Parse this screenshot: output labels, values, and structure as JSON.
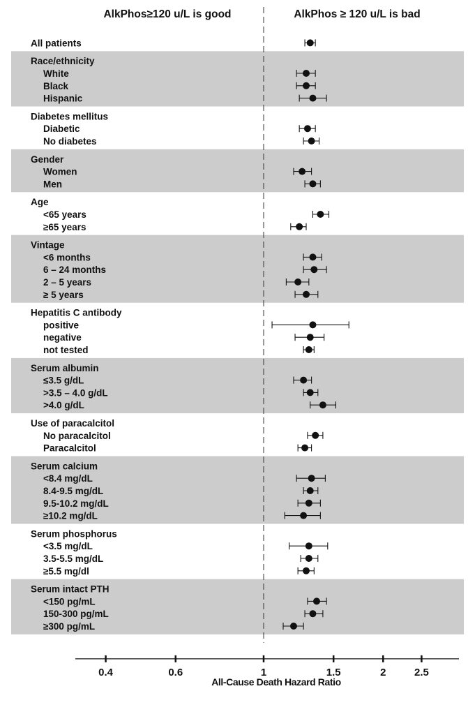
{
  "chart_data": {
    "type": "forest",
    "header_left": "AlkPhos≥120 u/L is good",
    "header_right": "AlkPhos ≥ 120 u/L is bad",
    "xlabel": "All-Cause Death Hazard Ratio",
    "x_scale": "log",
    "xlim": [
      0.4,
      2.9
    ],
    "reference_line": 1,
    "x_ticks": [
      {
        "value": 0.4,
        "label": "0.4"
      },
      {
        "value": 0.6,
        "label": "0.6"
      },
      {
        "value": 1,
        "label": "1"
      },
      {
        "value": 1.5,
        "label": "1.5"
      },
      {
        "value": 2,
        "label": "2"
      },
      {
        "value": 2.5,
        "label": "2.5"
      }
    ],
    "colors": {
      "band": "#cccccc",
      "marker": "#111111",
      "text": "#111111"
    },
    "groups": [
      {
        "label": "All patients",
        "shaded": false,
        "hr": 1.31,
        "lo": 1.27,
        "hi": 1.35,
        "rows": []
      },
      {
        "label": "Race/ethnicity",
        "shaded": true,
        "rows": [
          {
            "label": "White",
            "hr": 1.28,
            "lo": 1.21,
            "hi": 1.35
          },
          {
            "label": "Black",
            "hr": 1.28,
            "lo": 1.21,
            "hi": 1.35
          },
          {
            "label": "Hispanic",
            "hr": 1.33,
            "lo": 1.23,
            "hi": 1.44
          }
        ]
      },
      {
        "label": "Diabetes mellitus",
        "shaded": false,
        "rows": [
          {
            "label": "Diabetic",
            "hr": 1.29,
            "lo": 1.23,
            "hi": 1.35
          },
          {
            "label": "No diabetes",
            "hr": 1.32,
            "lo": 1.26,
            "hi": 1.38
          }
        ]
      },
      {
        "label": "Gender",
        "shaded": true,
        "rows": [
          {
            "label": "Women",
            "hr": 1.25,
            "lo": 1.19,
            "hi": 1.32
          },
          {
            "label": "Men",
            "hr": 1.33,
            "lo": 1.27,
            "hi": 1.39
          }
        ]
      },
      {
        "label": "Age",
        "shaded": false,
        "rows": [
          {
            "label": "<65 years",
            "hr": 1.39,
            "lo": 1.33,
            "hi": 1.46
          },
          {
            "label": "≥65 years",
            "hr": 1.23,
            "lo": 1.17,
            "hi": 1.28
          }
        ]
      },
      {
        "label": "Vintage",
        "shaded": true,
        "rows": [
          {
            "label": "<6 months",
            "hr": 1.33,
            "lo": 1.26,
            "hi": 1.4
          },
          {
            "label": "6 – 24 months",
            "hr": 1.34,
            "lo": 1.26,
            "hi": 1.44
          },
          {
            "label": "2 – 5 years",
            "hr": 1.22,
            "lo": 1.14,
            "hi": 1.3
          },
          {
            "label": "≥ 5 years",
            "hr": 1.28,
            "lo": 1.2,
            "hi": 1.37
          }
        ]
      },
      {
        "label": "Hepatitis C antibody",
        "shaded": false,
        "rows": [
          {
            "label": "positive",
            "hr": 1.33,
            "lo": 1.05,
            "hi": 1.64
          },
          {
            "label": "negative",
            "hr": 1.31,
            "lo": 1.2,
            "hi": 1.42
          },
          {
            "label": "not tested",
            "hr": 1.3,
            "lo": 1.26,
            "hi": 1.34
          }
        ]
      },
      {
        "label": "Serum albumin",
        "shaded": true,
        "rows": [
          {
            "label": "≤3.5 g/dL",
            "hr": 1.26,
            "lo": 1.19,
            "hi": 1.32
          },
          {
            "label": ">3.5 – 4.0 g/dL",
            "hr": 1.31,
            "lo": 1.26,
            "hi": 1.37
          },
          {
            "label": ">4.0 g/dL",
            "hr": 1.41,
            "lo": 1.31,
            "hi": 1.52
          }
        ]
      },
      {
        "label": "Use of paracalcitol",
        "shaded": false,
        "rows": [
          {
            "label": "No paracalcitol",
            "hr": 1.35,
            "lo": 1.29,
            "hi": 1.41
          },
          {
            "label": "Paracalcitol",
            "hr": 1.27,
            "lo": 1.22,
            "hi": 1.32
          }
        ]
      },
      {
        "label": "Serum calcium",
        "shaded": true,
        "rows": [
          {
            "label": "<8.4 mg/dL",
            "hr": 1.32,
            "lo": 1.21,
            "hi": 1.43
          },
          {
            "label": "8.4-9.5 mg/dL",
            "hr": 1.31,
            "lo": 1.26,
            "hi": 1.37
          },
          {
            "label": "9.5-10.2 mg/dL",
            "hr": 1.3,
            "lo": 1.22,
            "hi": 1.39
          },
          {
            "label": "≥10.2 mg/dL",
            "hr": 1.26,
            "lo": 1.13,
            "hi": 1.39
          }
        ]
      },
      {
        "label": "Serum phosphorus",
        "shaded": false,
        "rows": [
          {
            "label": "<3.5 mg/dL",
            "hr": 1.3,
            "lo": 1.16,
            "hi": 1.45
          },
          {
            "label": "3.5-5.5 mg/dL",
            "hr": 1.3,
            "lo": 1.24,
            "hi": 1.37
          },
          {
            "label": "≥5.5 mg/dl",
            "hr": 1.28,
            "lo": 1.22,
            "hi": 1.34
          }
        ]
      },
      {
        "label": "Serum intact PTH",
        "shaded": true,
        "rows": [
          {
            "label": "<150 pg/mL",
            "hr": 1.36,
            "lo": 1.29,
            "hi": 1.44
          },
          {
            "label": "150-300 pg/mL",
            "hr": 1.33,
            "lo": 1.27,
            "hi": 1.41
          },
          {
            "label": "≥300 pg/mL",
            "hr": 1.19,
            "lo": 1.12,
            "hi": 1.26
          }
        ]
      }
    ]
  }
}
